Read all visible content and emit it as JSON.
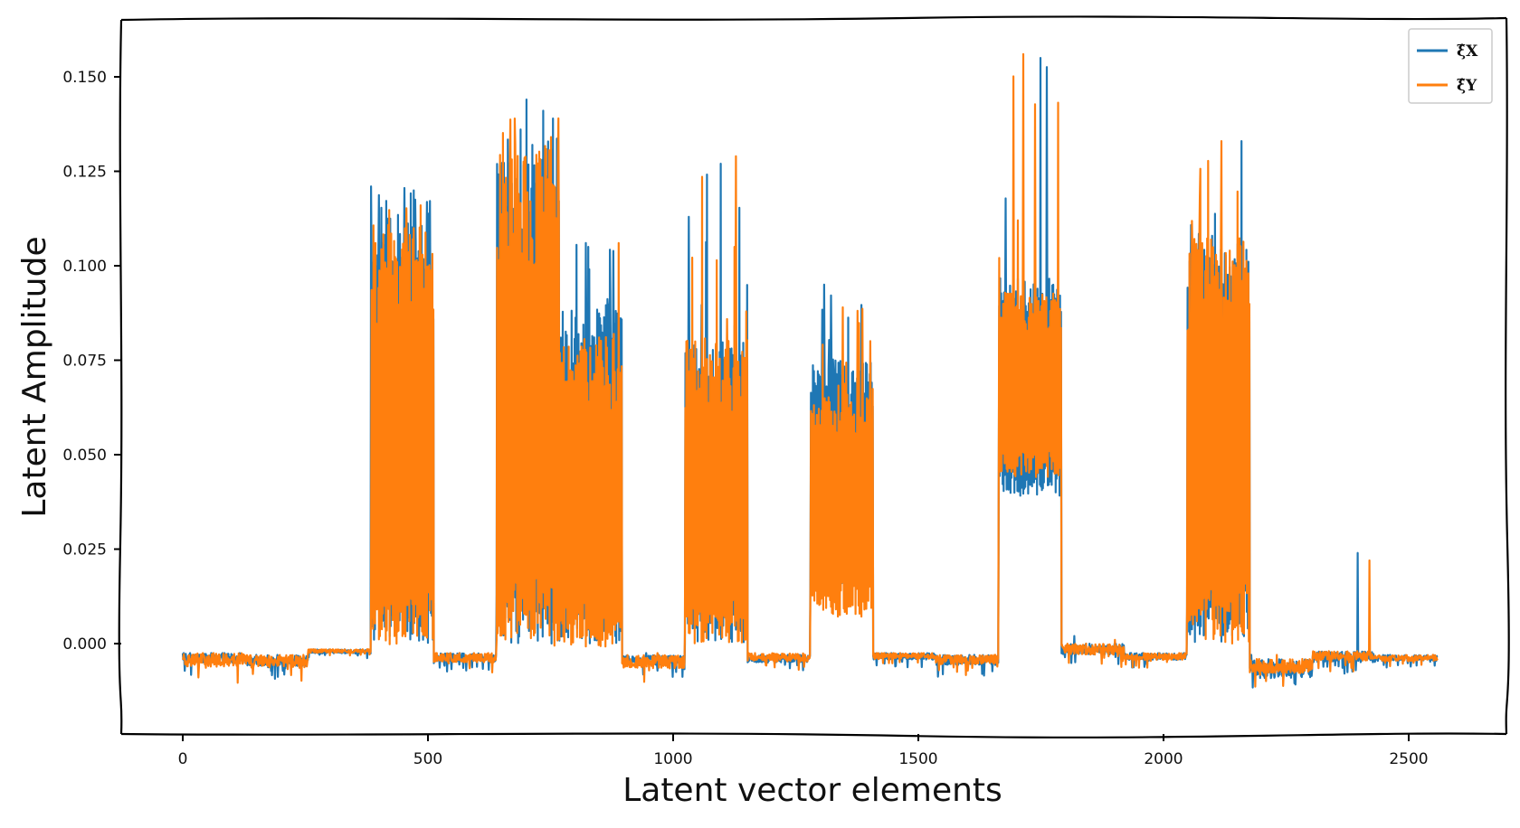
{
  "chart_data": {
    "type": "line",
    "title": "",
    "xlabel": "Latent vector elements",
    "ylabel": "Latent Amplitude",
    "xlim": [
      -130,
      2680
    ],
    "ylim": [
      -0.025,
      0.165
    ],
    "x_ticks": [
      0,
      500,
      1000,
      1500,
      2000,
      2500
    ],
    "x_tick_labels": [
      "0",
      "500",
      "1000",
      "1500",
      "2000",
      "2500"
    ],
    "y_ticks": [
      0.0,
      0.025,
      0.05,
      0.075,
      0.1,
      0.125,
      0.15
    ],
    "y_tick_labels": [
      "0.000",
      "0.025",
      "0.050",
      "0.075",
      "0.100",
      "0.125",
      "0.150"
    ],
    "grid": false,
    "legend_position": "top-right",
    "colors": {
      "xi_x": "#1f77b4",
      "xi_y": "#ff7f0e"
    },
    "n_points": 2560,
    "segment_length": 128,
    "series": [
      {
        "name": "ξ̂X",
        "color": "#1f77b4",
        "segments": [
          {
            "x_start": 0,
            "x_end": 127,
            "low": -0.0085,
            "high": -0.0025,
            "peak": -0.0025
          },
          {
            "x_start": 128,
            "x_end": 255,
            "low": -0.0095,
            "high": -0.003,
            "peak": -0.003
          },
          {
            "x_start": 256,
            "x_end": 383,
            "low": -0.004,
            "high": -0.0015,
            "peak": -0.0015
          },
          {
            "x_start": 384,
            "x_end": 511,
            "low": 0.0,
            "high": 0.113,
            "peak": 0.121
          },
          {
            "x_start": 512,
            "x_end": 639,
            "low": -0.0075,
            "high": -0.0025,
            "peak": -0.0025
          },
          {
            "x_start": 640,
            "x_end": 767,
            "low": 0.0,
            "high": 0.135,
            "peak": 0.144
          },
          {
            "x_start": 768,
            "x_end": 895,
            "low": 0.0,
            "high": 0.09,
            "peak": 0.106
          },
          {
            "x_start": 896,
            "x_end": 1023,
            "low": -0.009,
            "high": -0.003,
            "peak": -0.0025
          },
          {
            "x_start": 1024,
            "x_end": 1151,
            "low": 0.0,
            "high": 0.08,
            "peak": 0.127
          },
          {
            "x_start": 1152,
            "x_end": 1279,
            "low": -0.0075,
            "high": -0.003,
            "peak": -0.003
          },
          {
            "x_start": 1280,
            "x_end": 1407,
            "low": 0.015,
            "high": 0.075,
            "peak": 0.095
          },
          {
            "x_start": 1408,
            "x_end": 1535,
            "low": -0.0065,
            "high": -0.0025,
            "peak": -0.0025
          },
          {
            "x_start": 1536,
            "x_end": 1663,
            "low": -0.009,
            "high": -0.003,
            "peak": -0.003
          },
          {
            "x_start": 1664,
            "x_end": 1791,
            "low": 0.039,
            "high": 0.097,
            "peak": 0.155
          },
          {
            "x_start": 1792,
            "x_end": 1919,
            "low": -0.0065,
            "high": 0.0,
            "peak": 0.002
          },
          {
            "x_start": 1920,
            "x_end": 2047,
            "low": -0.0065,
            "high": -0.0025,
            "peak": -0.0025
          },
          {
            "x_start": 2048,
            "x_end": 2175,
            "low": 0.0,
            "high": 0.108,
            "peak": 0.133
          },
          {
            "x_start": 2176,
            "x_end": 2303,
            "low": -0.0155,
            "high": -0.004,
            "peak": -0.003
          },
          {
            "x_start": 2304,
            "x_end": 2431,
            "low": -0.0085,
            "high": -0.002,
            "peak": 0.024
          },
          {
            "x_start": 2432,
            "x_end": 2559,
            "low": -0.0065,
            "high": -0.003,
            "peak": -0.003
          }
        ]
      },
      {
        "name": "ξ̂Y",
        "color": "#ff7f0e",
        "segments": [
          {
            "x_start": 0,
            "x_end": 127,
            "low": -0.0105,
            "high": -0.0025,
            "peak": -0.0025
          },
          {
            "x_start": 128,
            "x_end": 255,
            "low": -0.0105,
            "high": -0.003,
            "peak": -0.003
          },
          {
            "x_start": 256,
            "x_end": 383,
            "low": -0.0035,
            "high": -0.0015,
            "peak": -0.0015
          },
          {
            "x_start": 384,
            "x_end": 511,
            "low": -0.0005,
            "high": 0.111,
            "peak": 0.116
          },
          {
            "x_start": 512,
            "x_end": 639,
            "low": -0.008,
            "high": -0.0025,
            "peak": -0.0025
          },
          {
            "x_start": 640,
            "x_end": 767,
            "low": -0.001,
            "high": 0.132,
            "peak": 0.139
          },
          {
            "x_start": 768,
            "x_end": 895,
            "low": -0.001,
            "high": 0.082,
            "peak": 0.106
          },
          {
            "x_start": 896,
            "x_end": 1023,
            "low": -0.011,
            "high": -0.003,
            "peak": -0.0025
          },
          {
            "x_start": 1024,
            "x_end": 1151,
            "low": 0.0,
            "high": 0.081,
            "peak": 0.129
          },
          {
            "x_start": 1152,
            "x_end": 1279,
            "low": -0.0075,
            "high": -0.0025,
            "peak": -0.0025
          },
          {
            "x_start": 1280,
            "x_end": 1407,
            "low": 0.007,
            "high": 0.069,
            "peak": 0.089
          },
          {
            "x_start": 1408,
            "x_end": 1535,
            "low": -0.006,
            "high": -0.0025,
            "peak": -0.0025
          },
          {
            "x_start": 1536,
            "x_end": 1663,
            "low": -0.0085,
            "high": -0.003,
            "peak": -0.003
          },
          {
            "x_start": 1664,
            "x_end": 1791,
            "low": 0.044,
            "high": 0.093,
            "peak": 0.156
          },
          {
            "x_start": 1792,
            "x_end": 1919,
            "low": -0.0065,
            "high": 0.0,
            "peak": 0.001
          },
          {
            "x_start": 1920,
            "x_end": 2047,
            "low": -0.0065,
            "high": -0.0025,
            "peak": -0.0025
          },
          {
            "x_start": 2048,
            "x_end": 2175,
            "low": 0.0,
            "high": 0.108,
            "peak": 0.133
          },
          {
            "x_start": 2176,
            "x_end": 2303,
            "low": -0.0125,
            "high": -0.004,
            "peak": -0.003
          },
          {
            "x_start": 2304,
            "x_end": 2431,
            "low": -0.0075,
            "high": -0.002,
            "peak": 0.022
          },
          {
            "x_start": 2432,
            "x_end": 2559,
            "low": -0.0065,
            "high": -0.003,
            "peak": -0.003
          }
        ]
      }
    ]
  }
}
